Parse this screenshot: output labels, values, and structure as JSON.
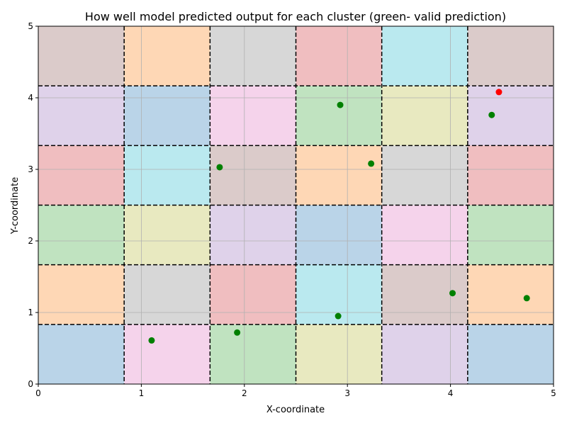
{
  "chart_data": {
    "type": "scatter",
    "title": "How well model predicted output for each cluster (green- valid prediction)",
    "xlabel": "X-coordinate",
    "ylabel": "Y-coordinate",
    "xlim": [
      0,
      5
    ],
    "ylim": [
      0,
      5
    ],
    "xticks": [
      "0",
      "1",
      "2",
      "3",
      "4",
      "5"
    ],
    "yticks": [
      "0",
      "1",
      "2",
      "3",
      "4",
      "5"
    ],
    "grid": true,
    "grid_lines": {
      "x": [
        0.8333,
        1.6667,
        2.5,
        3.3333,
        4.1667
      ],
      "y": [
        0.8333,
        1.6667,
        2.5,
        3.3333,
        4.1667
      ],
      "style": "dashed"
    },
    "cells": {
      "rows": 6,
      "cols": 6,
      "colors_top_to_bottom": [
        [
          "#dbcbca",
          "#fed7b5",
          "#d7d7d7",
          "#f0bec0",
          "#bae9ef",
          "#dbcbca"
        ],
        [
          "#dfd2ea",
          "#bad4e8",
          "#f5d3eb",
          "#c0e3c0",
          "#e8e9c0",
          "#dfd2ea"
        ],
        [
          "#f0bec0",
          "#bae9ef",
          "#dbcbca",
          "#fed7b5",
          "#d7d7d7",
          "#f0bec0"
        ],
        [
          "#c0e3c0",
          "#e8e9c0",
          "#dfd2ea",
          "#bad4e8",
          "#f5d3eb",
          "#c0e3c0"
        ],
        [
          "#fed7b5",
          "#d7d7d7",
          "#f0bec0",
          "#bae9ef",
          "#dbcbca",
          "#fed7b5"
        ],
        [
          "#bad4e8",
          "#f5d3eb",
          "#c0e3c0",
          "#e8e9c0",
          "#dfd2ea",
          "#bad4e8"
        ]
      ]
    },
    "points": [
      {
        "x": 1.1,
        "y": 0.61,
        "valid": true
      },
      {
        "x": 1.93,
        "y": 0.72,
        "valid": true
      },
      {
        "x": 2.91,
        "y": 0.95,
        "valid": true
      },
      {
        "x": 4.02,
        "y": 1.27,
        "valid": true
      },
      {
        "x": 4.74,
        "y": 1.2,
        "valid": true
      },
      {
        "x": 1.76,
        "y": 3.03,
        "valid": true
      },
      {
        "x": 3.23,
        "y": 3.08,
        "valid": true
      },
      {
        "x": 2.93,
        "y": 3.9,
        "valid": true
      },
      {
        "x": 4.4,
        "y": 3.76,
        "valid": true
      },
      {
        "x": 4.47,
        "y": 4.08,
        "valid": false
      }
    ],
    "colors": {
      "valid": "#008000",
      "invalid": "#ff0000"
    }
  }
}
